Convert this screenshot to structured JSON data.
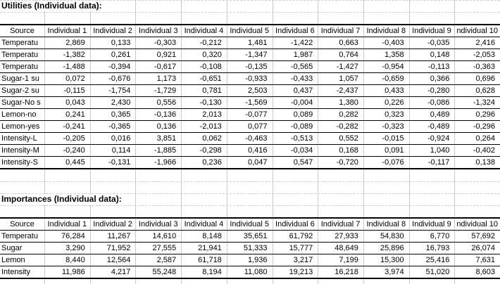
{
  "utilities": {
    "title": "Utilities (Individual data):",
    "columns": [
      "Source",
      "Individual 1",
      "Individual 2",
      "Individual 3",
      "Individual 4",
      "Individual 5",
      "Individual 6",
      "Individual 7",
      "Individual 8",
      "Individual 9",
      "ndividual 10"
    ],
    "rows": [
      {
        "label": "Temperatu",
        "values": [
          "2,869",
          "0,133",
          "-0,303",
          "-0,212",
          "1,481",
          "-1,422",
          "0,663",
          "-0,403",
          "-0,035",
          "2,416"
        ]
      },
      {
        "label": "Temperatu",
        "values": [
          "-1,382",
          "0,261",
          "0,921",
          "0,320",
          "-1,347",
          "1,987",
          "0,764",
          "1,358",
          "0,148",
          "-2,053"
        ]
      },
      {
        "label": "Temperatu",
        "values": [
          "-1,488",
          "-0,394",
          "-0,617",
          "-0,108",
          "-0,135",
          "-0,565",
          "-1,427",
          "-0,954",
          "-0,113",
          "-0,363"
        ]
      },
      {
        "label": "Sugar-1 su",
        "values": [
          "0,072",
          "-0,676",
          "1,173",
          "-0,651",
          "-0,933",
          "-0,433",
          "1,057",
          "-0,659",
          "0,366",
          "0,696"
        ]
      },
      {
        "label": "Sugar-2 su",
        "values": [
          "-0,115",
          "-1,754",
          "-1,729",
          "0,781",
          "2,503",
          "0,437",
          "-2,437",
          "0,433",
          "-0,280",
          "0,628"
        ]
      },
      {
        "label": "Sugar-No s",
        "values": [
          "0,043",
          "2,430",
          "0,556",
          "-0,130",
          "-1,569",
          "-0,004",
          "1,380",
          "0,226",
          "-0,086",
          "-1,324"
        ]
      },
      {
        "label": "Lemon-no",
        "values": [
          "0,241",
          "0,365",
          "-0,136",
          "2,013",
          "-0,077",
          "0,089",
          "0,282",
          "0,323",
          "0,489",
          "0,296"
        ]
      },
      {
        "label": "Lemon-yes",
        "values": [
          "-0,241",
          "-0,365",
          "0,136",
          "-2,013",
          "0,077",
          "-0,089",
          "-0,282",
          "-0,323",
          "-0,489",
          "-0,296"
        ]
      },
      {
        "label": "Intensity-L",
        "values": [
          "-0,205",
          "0,016",
          "3,851",
          "0,062",
          "-0,463",
          "-0,513",
          "0,552",
          "-0,015",
          "-0,924",
          "0,264"
        ]
      },
      {
        "label": "Intensity-M",
        "values": [
          "-0,240",
          "0,114",
          "-1,885",
          "-0,298",
          "0,416",
          "-0,034",
          "0,168",
          "0,091",
          "1,040",
          "-0,402"
        ]
      },
      {
        "label": "Intensity-S",
        "values": [
          "0,445",
          "-0,131",
          "-1,966",
          "0,236",
          "0,047",
          "0,547",
          "-0,720",
          "-0,076",
          "-0,117",
          "0,138"
        ]
      }
    ]
  },
  "importances": {
    "title": "Importances (Individual data):",
    "columns": [
      "Source",
      "Individual 1",
      "Individual 2",
      "Individual 3",
      "Individual 4",
      "Individual 5",
      "Individual 6",
      "Individual 7",
      "Individual 8",
      "Individual 9",
      "ndividual 10"
    ],
    "rows": [
      {
        "label": "Temperatu",
        "values": [
          "76,284",
          "11,267",
          "14,610",
          "8,148",
          "35,651",
          "61,792",
          "27,933",
          "54,830",
          "6,770",
          "57,692"
        ]
      },
      {
        "label": "Sugar",
        "values": [
          "3,290",
          "71,952",
          "27,555",
          "21,941",
          "51,333",
          "15,777",
          "48,649",
          "25,896",
          "16,793",
          "26,074"
        ]
      },
      {
        "label": "Lemon",
        "values": [
          "8,440",
          "12,564",
          "2,587",
          "61,718",
          "1,936",
          "3,217",
          "7,199",
          "15,300",
          "25,416",
          "7,631"
        ]
      },
      {
        "label": "Intensity",
        "values": [
          "11,986",
          "4,217",
          "55,248",
          "8,194",
          "11,080",
          "19,213",
          "16,218",
          "3,974",
          "51,020",
          "8,603"
        ]
      }
    ]
  }
}
